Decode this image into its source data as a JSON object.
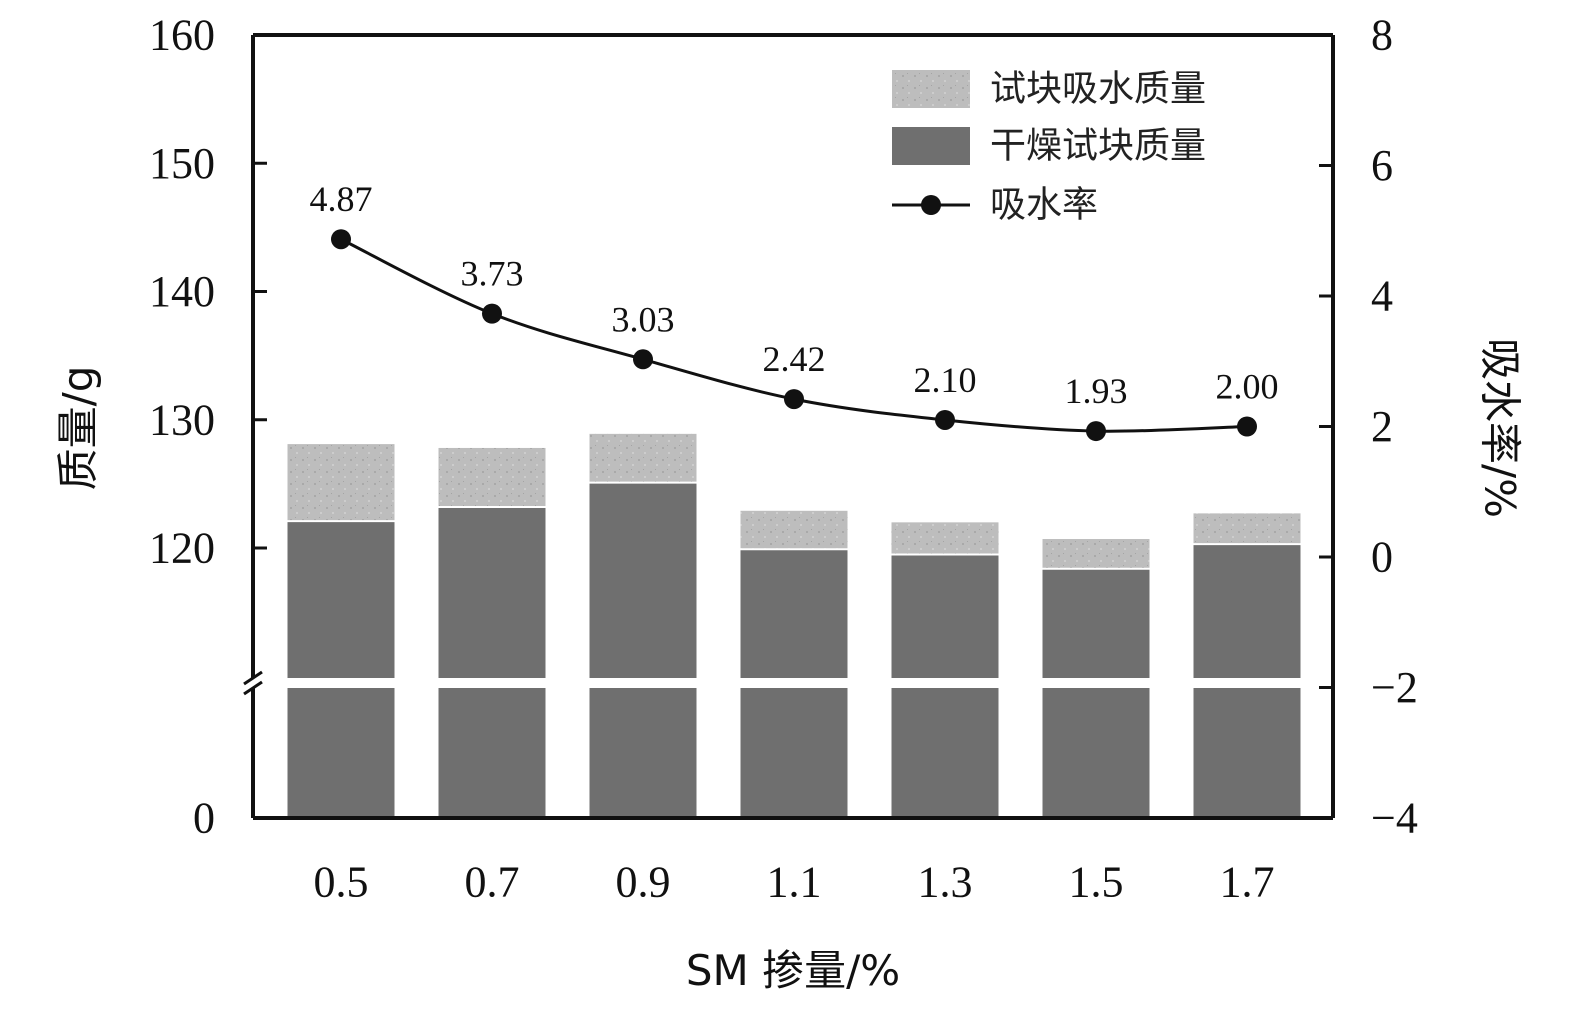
{
  "chart_data": {
    "type": "bar",
    "stacked": true,
    "xlabel": "SM 掺量/%",
    "ylabel": "质量/g",
    "y2label": "吸水率/%",
    "categories": [
      "0.5",
      "0.7",
      "0.9",
      "1.1",
      "1.3",
      "1.5",
      "1.7"
    ],
    "y_ticks": [
      "0",
      "120",
      "130",
      "140",
      "150",
      "160"
    ],
    "y2_ticks": [
      "−4",
      "−2",
      "0",
      "2",
      "4",
      "6",
      "8"
    ],
    "y_axis_break": {
      "from": 0,
      "to": 110
    },
    "ylim": [
      0,
      160
    ],
    "y2lim": [
      -4,
      8
    ],
    "legend_position": "top-right",
    "series": [
      {
        "name": "干燥试块质量",
        "kind": "bar",
        "axis": "left",
        "color": "#6f6f6f",
        "values": [
          122.1,
          123.2,
          125.1,
          119.9,
          119.5,
          118.4,
          120.3
        ]
      },
      {
        "name": "试块吸水质量",
        "kind": "bar",
        "axis": "left",
        "color": "#bdbdbd",
        "values": [
          6.0,
          4.6,
          3.8,
          3.0,
          2.5,
          2.3,
          2.4
        ]
      },
      {
        "name": "吸水率",
        "kind": "line",
        "axis": "right",
        "color": "#111111",
        "values": [
          4.87,
          3.73,
          3.03,
          2.42,
          2.1,
          1.93,
          2.0
        ],
        "labels": [
          "4.87",
          "3.73",
          "3.03",
          "2.42",
          "2.10",
          "1.93",
          "2.00"
        ]
      }
    ]
  }
}
